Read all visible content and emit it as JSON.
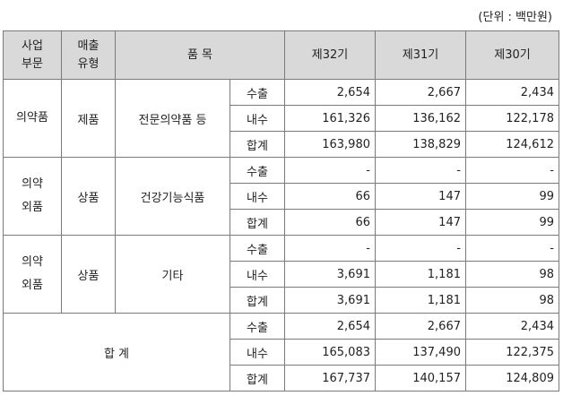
{
  "unit_note": "(단위 : 백만원)",
  "header": {
    "segment": [
      "사업",
      "부문"
    ],
    "sales_type": [
      "매출",
      "유형"
    ],
    "item": "품 목",
    "y32": "제32기",
    "y31": "제31기",
    "y30": "제30기"
  },
  "groups": [
    {
      "segment": [
        "의약품"
      ],
      "type": "제품",
      "item": "전문의약품 등",
      "rows": [
        {
          "label": "수출",
          "v32": "2,654",
          "v31": "2,667",
          "v30": "2,434"
        },
        {
          "label": "내수",
          "v32": "161,326",
          "v31": "136,162",
          "v30": "122,178"
        },
        {
          "label": "합계",
          "v32": "163,980",
          "v31": "138,829",
          "v30": "124,612"
        }
      ]
    },
    {
      "segment": [
        "의약",
        "외품"
      ],
      "type": "상품",
      "item": "건강기능식품",
      "rows": [
        {
          "label": "수출",
          "v32": "-",
          "v31": "-",
          "v30": "-"
        },
        {
          "label": "내수",
          "v32": "66",
          "v31": "147",
          "v30": "99"
        },
        {
          "label": "합계",
          "v32": "66",
          "v31": "147",
          "v30": "99"
        }
      ]
    },
    {
      "segment": [
        "의약",
        "외품"
      ],
      "type": "상품",
      "item": "기타",
      "rows": [
        {
          "label": "수출",
          "v32": "-",
          "v31": "-",
          "v30": "-"
        },
        {
          "label": "내수",
          "v32": "3,691",
          "v31": "1,181",
          "v30": "98"
        },
        {
          "label": "합계",
          "v32": "3,691",
          "v31": "1,181",
          "v30": "98"
        }
      ]
    }
  ],
  "total": {
    "label": "합 계",
    "rows": [
      {
        "label": "수출",
        "v32": "2,654",
        "v31": "2,667",
        "v30": "2,434"
      },
      {
        "label": "내수",
        "v32": "165,083",
        "v31": "137,490",
        "v30": "122,375"
      },
      {
        "label": "합계",
        "v32": "167,737",
        "v31": "140,157",
        "v30": "124,809"
      }
    ]
  }
}
